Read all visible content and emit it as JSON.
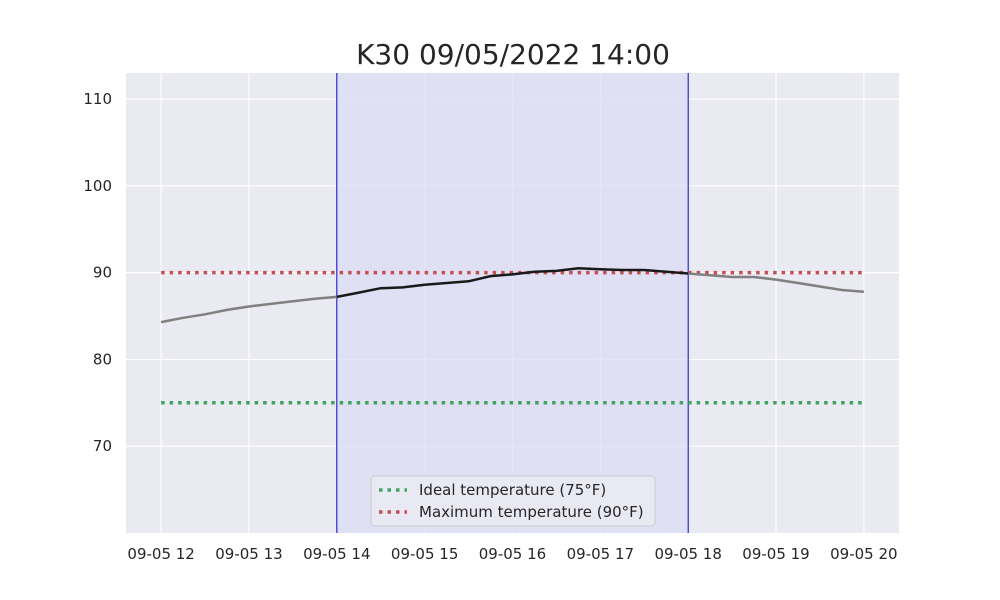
{
  "chart_data": {
    "type": "line",
    "title": "K30 09/05/2022 14:00",
    "xlabel": "",
    "ylabel": "",
    "x_tick_labels": [
      "09-05 12",
      "09-05 13",
      "09-05 14",
      "09-05 15",
      "09-05 16",
      "09-05 17",
      "09-05 18",
      "09-05 19",
      "09-05 20"
    ],
    "x_tick_hours": [
      12,
      13,
      14,
      15,
      16,
      17,
      18,
      19,
      20
    ],
    "xlim": [
      11.6,
      20.4
    ],
    "y_ticks": [
      70,
      80,
      90,
      100,
      110
    ],
    "ylim": [
      60,
      113
    ],
    "grid": true,
    "highlight_window": {
      "start_hour": 14,
      "end_hour": 18,
      "color": "#dcdcf5",
      "edge_color": "#0000cc"
    },
    "reference_lines": [
      {
        "name": "Ideal temperature (75°F)",
        "value": 75,
        "color": "#3fa25f",
        "x_range": [
          12,
          20
        ]
      },
      {
        "name": "Maximum temperature (90°F)",
        "value": 90,
        "color": "#c44e52",
        "x_range": [
          12,
          20
        ]
      }
    ],
    "series": [
      {
        "color_outside": "#808080",
        "color_inside": "#1a1a1a",
        "x": [
          12,
          12.25,
          12.5,
          12.75,
          13,
          13.25,
          13.5,
          13.75,
          14,
          14.25,
          14.5,
          14.75,
          15,
          15.25,
          15.5,
          15.75,
          16,
          16.25,
          16.5,
          16.75,
          17,
          17.25,
          17.5,
          17.75,
          18,
          18.25,
          18.5,
          18.75,
          19,
          19.25,
          19.5,
          19.75,
          20
        ],
        "y": [
          84.3,
          84.8,
          85.2,
          85.7,
          86.1,
          86.4,
          86.7,
          87.0,
          87.2,
          87.7,
          88.2,
          88.3,
          88.6,
          88.8,
          89.0,
          89.6,
          89.8,
          90.1,
          90.2,
          90.5,
          90.4,
          90.3,
          90.3,
          90.1,
          89.9,
          89.7,
          89.5,
          89.5,
          89.2,
          88.8,
          88.4,
          88.0,
          87.8
        ]
      }
    ],
    "legend": {
      "placement": "lower-center",
      "entries": [
        "Ideal temperature (75°F)",
        "Maximum temperature (90°F)"
      ]
    }
  }
}
